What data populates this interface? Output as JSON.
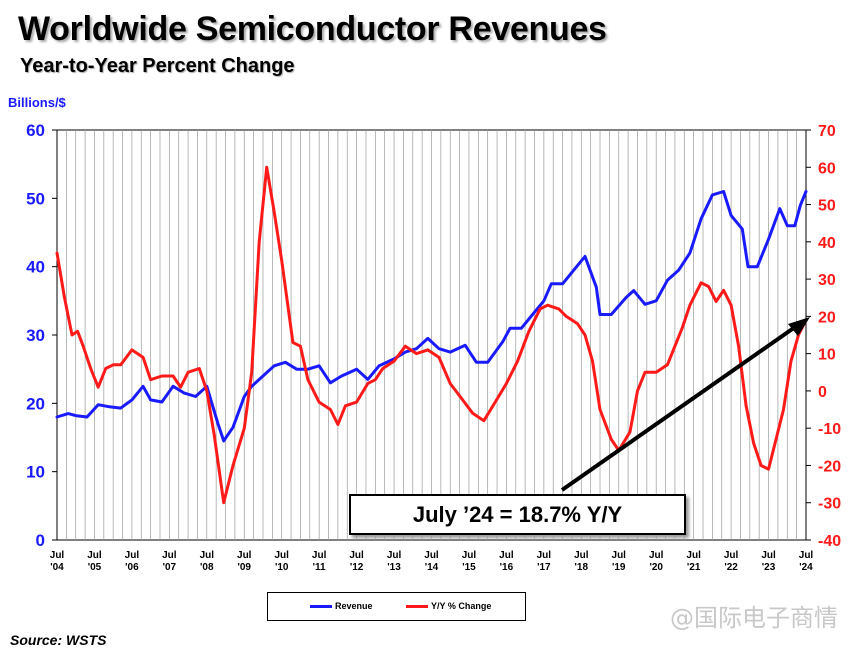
{
  "title": "Worldwide Semiconductor Revenues",
  "subtitle": "Year-to-Year Percent Change",
  "source": "Source: WSTS",
  "watermark": "@国际电子商情",
  "annotation": "July ’24 = 18.7% Y/Y",
  "chart_data": {
    "type": "line",
    "ylabel_left": "Billions/$",
    "y_left_range": [
      0,
      60
    ],
    "y_left_ticks": [
      "0",
      "10",
      "20",
      "30",
      "40",
      "50",
      "60"
    ],
    "y_right_range": [
      -40,
      70
    ],
    "y_right_ticks": [
      "-40",
      "-30",
      "-20",
      "-10",
      "0",
      "10",
      "20",
      "30",
      "40",
      "50",
      "60",
      "70"
    ],
    "x_range": [
      2004.5,
      2024.5
    ],
    "x_tick_labels": [
      {
        "month": "Jul",
        "year": "'04"
      },
      {
        "month": "Jul",
        "year": "'05"
      },
      {
        "month": "Jul",
        "year": "'06"
      },
      {
        "month": "Jul",
        "year": "'07"
      },
      {
        "month": "Jul",
        "year": "'08"
      },
      {
        "month": "Jul",
        "year": "'09"
      },
      {
        "month": "Jul",
        "year": "'10"
      },
      {
        "month": "Jul",
        "year": "'11"
      },
      {
        "month": "Jul",
        "year": "'12"
      },
      {
        "month": "Jul",
        "year": "'13"
      },
      {
        "month": "Jul",
        "year": "'14"
      },
      {
        "month": "Jul",
        "year": "'15"
      },
      {
        "month": "Jul",
        "year": "'16"
      },
      {
        "month": "Jul",
        "year": "'17"
      },
      {
        "month": "Jul",
        "year": "'18"
      },
      {
        "month": "Jul",
        "year": "'19"
      },
      {
        "month": "Jul",
        "year": "'20"
      },
      {
        "month": "Jul",
        "year": "'21"
      },
      {
        "month": "Jul",
        "year": "'22"
      },
      {
        "month": "Jul",
        "year": "'23"
      },
      {
        "month": "Jul",
        "year": "'24"
      }
    ],
    "grid": "vertical",
    "legend_position": "bottom",
    "series": [
      {
        "name": "Revenue",
        "axis": "left",
        "color": "#1a1aff",
        "points": [
          [
            2004.5,
            18
          ],
          [
            2004.8,
            18.5
          ],
          [
            2005.0,
            18.2
          ],
          [
            2005.3,
            18
          ],
          [
            2005.6,
            19.8
          ],
          [
            2005.9,
            19.5
          ],
          [
            2006.2,
            19.3
          ],
          [
            2006.5,
            20.5
          ],
          [
            2006.8,
            22.5
          ],
          [
            2007.0,
            20.5
          ],
          [
            2007.3,
            20.2
          ],
          [
            2007.6,
            22.5
          ],
          [
            2007.9,
            21.5
          ],
          [
            2008.2,
            21
          ],
          [
            2008.5,
            22.5
          ],
          [
            2008.8,
            17
          ],
          [
            2008.95,
            14.5
          ],
          [
            2009.2,
            16.5
          ],
          [
            2009.5,
            21
          ],
          [
            2009.7,
            22.5
          ],
          [
            2010.0,
            24
          ],
          [
            2010.3,
            25.5
          ],
          [
            2010.6,
            26
          ],
          [
            2010.9,
            25
          ],
          [
            2011.2,
            25
          ],
          [
            2011.5,
            25.5
          ],
          [
            2011.8,
            23
          ],
          [
            2012.1,
            24
          ],
          [
            2012.5,
            25
          ],
          [
            2012.8,
            23.5
          ],
          [
            2013.1,
            25.5
          ],
          [
            2013.5,
            26.5
          ],
          [
            2013.8,
            27.5
          ],
          [
            2014.1,
            28
          ],
          [
            2014.4,
            29.5
          ],
          [
            2014.7,
            28
          ],
          [
            2015.0,
            27.5
          ],
          [
            2015.4,
            28.5
          ],
          [
            2015.7,
            26
          ],
          [
            2016.0,
            26
          ],
          [
            2016.4,
            29
          ],
          [
            2016.6,
            31
          ],
          [
            2016.9,
            31
          ],
          [
            2017.2,
            33
          ],
          [
            2017.5,
            35
          ],
          [
            2017.7,
            37.5
          ],
          [
            2018.0,
            37.5
          ],
          [
            2018.3,
            39.5
          ],
          [
            2018.6,
            41.5
          ],
          [
            2018.9,
            37
          ],
          [
            2019.0,
            33
          ],
          [
            2019.3,
            33
          ],
          [
            2019.7,
            35.5
          ],
          [
            2019.9,
            36.5
          ],
          [
            2020.2,
            34.5
          ],
          [
            2020.5,
            35
          ],
          [
            2020.8,
            38
          ],
          [
            2021.1,
            39.5
          ],
          [
            2021.4,
            42
          ],
          [
            2021.7,
            47
          ],
          [
            2022.0,
            50.5
          ],
          [
            2022.3,
            51
          ],
          [
            2022.5,
            47.5
          ],
          [
            2022.8,
            45.5
          ],
          [
            2022.95,
            40
          ],
          [
            2023.2,
            40
          ],
          [
            2023.5,
            44
          ],
          [
            2023.8,
            48.5
          ],
          [
            2024.0,
            46
          ],
          [
            2024.2,
            46
          ],
          [
            2024.35,
            49
          ],
          [
            2024.5,
            51
          ]
        ]
      },
      {
        "name": "Y/Y % Change",
        "axis": "right",
        "color": "#ff1a1a",
        "points": [
          [
            2004.5,
            37
          ],
          [
            2004.7,
            25
          ],
          [
            2004.9,
            15
          ],
          [
            2005.05,
            16
          ],
          [
            2005.2,
            12
          ],
          [
            2005.4,
            6
          ],
          [
            2005.6,
            1
          ],
          [
            2005.8,
            6
          ],
          [
            2006.0,
            7
          ],
          [
            2006.2,
            7
          ],
          [
            2006.5,
            11
          ],
          [
            2006.8,
            9
          ],
          [
            2007.0,
            3
          ],
          [
            2007.3,
            4
          ],
          [
            2007.6,
            4
          ],
          [
            2007.8,
            1
          ],
          [
            2008.0,
            5
          ],
          [
            2008.3,
            6
          ],
          [
            2008.5,
            0
          ],
          [
            2008.7,
            -12
          ],
          [
            2008.95,
            -30
          ],
          [
            2009.2,
            -20
          ],
          [
            2009.5,
            -10
          ],
          [
            2009.7,
            5
          ],
          [
            2009.9,
            40
          ],
          [
            2010.1,
            60
          ],
          [
            2010.3,
            48
          ],
          [
            2010.5,
            35
          ],
          [
            2010.8,
            13
          ],
          [
            2011.0,
            12
          ],
          [
            2011.2,
            3
          ],
          [
            2011.5,
            -3
          ],
          [
            2011.8,
            -5
          ],
          [
            2012.0,
            -9
          ],
          [
            2012.2,
            -4
          ],
          [
            2012.5,
            -3
          ],
          [
            2012.8,
            2
          ],
          [
            2013.0,
            3
          ],
          [
            2013.2,
            6
          ],
          [
            2013.5,
            8
          ],
          [
            2013.8,
            12
          ],
          [
            2014.1,
            10
          ],
          [
            2014.4,
            11
          ],
          [
            2014.7,
            9
          ],
          [
            2015.0,
            2
          ],
          [
            2015.3,
            -2
          ],
          [
            2015.6,
            -6
          ],
          [
            2015.9,
            -8
          ],
          [
            2016.2,
            -3
          ],
          [
            2016.5,
            2
          ],
          [
            2016.8,
            8
          ],
          [
            2017.1,
            16
          ],
          [
            2017.4,
            22
          ],
          [
            2017.6,
            23
          ],
          [
            2017.9,
            22
          ],
          [
            2018.1,
            20
          ],
          [
            2018.4,
            18
          ],
          [
            2018.6,
            15
          ],
          [
            2018.8,
            8
          ],
          [
            2019.0,
            -5
          ],
          [
            2019.3,
            -13
          ],
          [
            2019.5,
            -16
          ],
          [
            2019.8,
            -11
          ],
          [
            2020.0,
            0
          ],
          [
            2020.2,
            5
          ],
          [
            2020.5,
            5
          ],
          [
            2020.8,
            7
          ],
          [
            2021.0,
            12
          ],
          [
            2021.2,
            17
          ],
          [
            2021.4,
            23
          ],
          [
            2021.7,
            29
          ],
          [
            2021.9,
            28
          ],
          [
            2022.1,
            24
          ],
          [
            2022.3,
            27
          ],
          [
            2022.5,
            23
          ],
          [
            2022.7,
            12
          ],
          [
            2022.9,
            -4
          ],
          [
            2023.1,
            -14
          ],
          [
            2023.3,
            -20
          ],
          [
            2023.5,
            -21
          ],
          [
            2023.7,
            -13
          ],
          [
            2023.9,
            -5
          ],
          [
            2024.1,
            8
          ],
          [
            2024.3,
            15
          ],
          [
            2024.5,
            19
          ]
        ]
      }
    ]
  }
}
